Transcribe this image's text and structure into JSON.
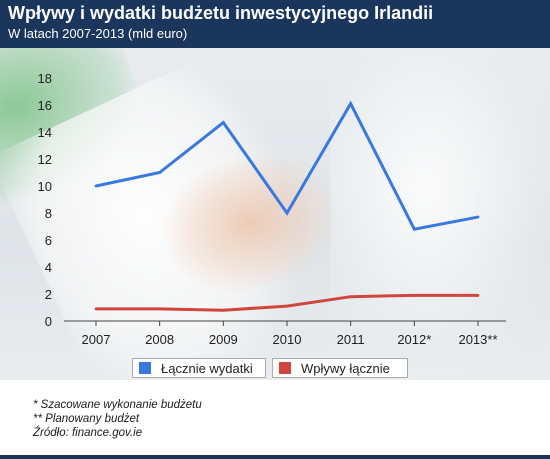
{
  "header": {
    "title": "Wpływy i wydatki budżetu inwestycyjnego Irlandii",
    "subtitle": "W latach 2007-2013 (mld euro)"
  },
  "colors": {
    "header_bg": "#1b365d",
    "series_expenses": "#3a78e0",
    "series_revenues": "#d0463d"
  },
  "chart_data": {
    "type": "line",
    "categories": [
      "2007",
      "2008",
      "2009",
      "2010",
      "2011",
      "2012*",
      "2013**"
    ],
    "series": [
      {
        "name": "Łącznie wydatki",
        "values": [
          10.0,
          11.0,
          14.7,
          8.0,
          16.1,
          6.8,
          7.7
        ]
      },
      {
        "name": "Wpływy łącznie",
        "values": [
          0.9,
          0.9,
          0.8,
          1.1,
          1.8,
          1.9,
          1.9
        ]
      }
    ],
    "yticks": [
      0,
      2,
      4,
      6,
      8,
      10,
      12,
      14,
      16,
      18
    ],
    "ylim": [
      0,
      18
    ],
    "grid": false,
    "legend_position": "bottom"
  },
  "notes": [
    "* Szacowane wykonanie budżetu",
    "** Planowany budżet",
    "Źródło: finance.gov.ie"
  ]
}
